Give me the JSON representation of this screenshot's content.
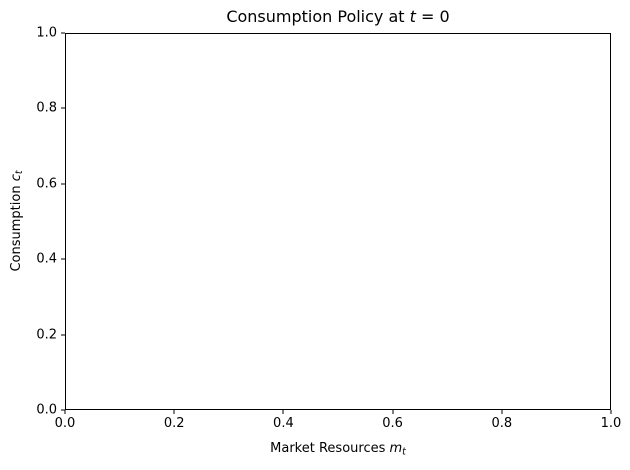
{
  "figure": {
    "title": {
      "prefix": "Consumption Policy at ",
      "var": "t",
      "suffix": " = 0"
    },
    "xaxis": {
      "label_prefix": "Market Resources ",
      "label_var": "m",
      "label_sub": "t",
      "tick_labels": [
        "0.0",
        "0.2",
        "0.4",
        "0.6",
        "0.8",
        "1.0"
      ]
    },
    "yaxis": {
      "label_prefix": "Consumption ",
      "label_var": "c",
      "label_sub": "t",
      "tick_labels": [
        "0.0",
        "0.2",
        "0.4",
        "0.6",
        "0.8",
        "1.0"
      ]
    },
    "colors": {
      "background": "#ffffff",
      "spine": "#000000",
      "text": "#000000"
    }
  },
  "chart_data": {
    "type": "line",
    "title": "Consumption Policy at t = 0",
    "xlabel": "Market Resources m_t",
    "ylabel": "Consumption c_t",
    "xlim": [
      0.0,
      1.0
    ],
    "ylim": [
      0.0,
      1.0
    ],
    "xticks": [
      0.0,
      0.2,
      0.4,
      0.6,
      0.8,
      1.0
    ],
    "yticks": [
      0.0,
      0.2,
      0.4,
      0.6,
      0.8,
      1.0
    ],
    "grid": false,
    "legend": false,
    "series": []
  }
}
